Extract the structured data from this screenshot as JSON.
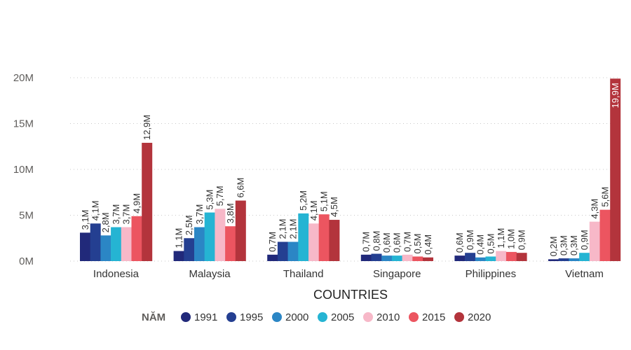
{
  "chart_data": {
    "type": "bar",
    "title": "",
    "xlabel": "COUNTRIES",
    "ylabel": "",
    "ylim": [
      0,
      20
    ],
    "yticks": [
      {
        "value": 0,
        "label": "0M"
      },
      {
        "value": 5,
        "label": "5M"
      },
      {
        "value": 10,
        "label": "10M"
      },
      {
        "value": 15,
        "label": "15M"
      },
      {
        "value": 20,
        "label": "20M"
      }
    ],
    "grid": true,
    "legend_title": "NĂM",
    "legend_position": "bottom",
    "categories": [
      "Indonesia",
      "Malaysia",
      "Thailand",
      "Singapore",
      "Philippines",
      "Vietnam"
    ],
    "series": [
      {
        "name": "1991",
        "color": "#21297a",
        "values": [
          3.1,
          1.1,
          0.7,
          0.7,
          0.6,
          0.2
        ],
        "labels": [
          "3,1M",
          "1,1M",
          "0,7M",
          "0,7M",
          "0,6M",
          "0,2M"
        ]
      },
      {
        "name": "1995",
        "color": "#243f91",
        "values": [
          4.1,
          2.5,
          2.1,
          0.8,
          0.9,
          0.3
        ],
        "labels": [
          "4,1M",
          "2,5M",
          "2,1M",
          "0,8M",
          "0,9M",
          "0,3M"
        ]
      },
      {
        "name": "2000",
        "color": "#2b86c5",
        "values": [
          2.8,
          3.7,
          2.1,
          0.6,
          0.4,
          0.3
        ],
        "labels": [
          "2,8M",
          "3,7M",
          "2,1M",
          "0,6M",
          "0,4M",
          "0,3M"
        ]
      },
      {
        "name": "2005",
        "color": "#25b4d3",
        "values": [
          3.7,
          5.3,
          5.2,
          0.6,
          0.5,
          0.9
        ],
        "labels": [
          "3,7M",
          "5,3M",
          "5,2M",
          "0,6M",
          "0,5M",
          "0,9M"
        ]
      },
      {
        "name": "2010",
        "color": "#f7b8c8",
        "values": [
          3.7,
          5.7,
          4.1,
          0.7,
          1.1,
          4.3
        ],
        "labels": [
          "3,7M",
          "5,7M",
          "4,1M",
          "0,7M",
          "1,1M",
          "4,3M"
        ]
      },
      {
        "name": "2015",
        "color": "#ec5560",
        "values": [
          4.9,
          3.8,
          5.1,
          0.5,
          1.0,
          5.6
        ],
        "labels": [
          "4,9M",
          "3,8M",
          "5,1M",
          "0,5M",
          "1,0M",
          "5,6M"
        ]
      },
      {
        "name": "2020",
        "color": "#b3343c",
        "values": [
          12.9,
          6.6,
          4.5,
          0.4,
          0.9,
          19.9
        ],
        "labels": [
          "12,9M",
          "6,6M",
          "4,5M",
          "0,4M",
          "0,9M",
          "19,9M"
        ]
      }
    ]
  }
}
